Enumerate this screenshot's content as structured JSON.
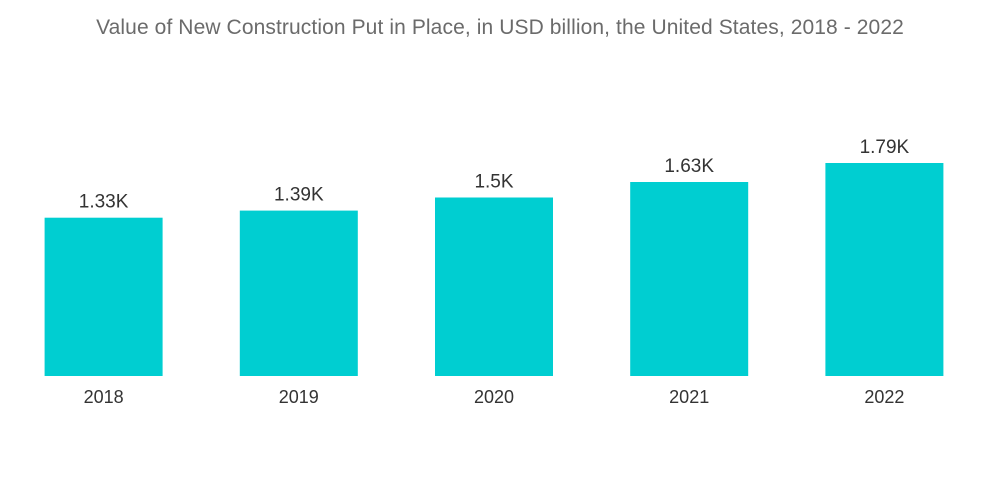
{
  "chart_data": {
    "type": "bar",
    "title": "Value of New Construction Put in Place, in USD billion, the United States, 2018 - 2022",
    "categories": [
      "2018",
      "2019",
      "2020",
      "2021",
      "2022"
    ],
    "values": [
      1330,
      1390,
      1500,
      1630,
      1790
    ],
    "data_labels": [
      "1.33K",
      "1.39K",
      "1.5K",
      "1.63K",
      "1.79K"
    ],
    "xlabel": "",
    "ylabel": "",
    "ylim": [
      0,
      1790
    ],
    "grid": false,
    "legend": "none",
    "colors": {
      "bar": "#00CED1",
      "title": "#6b6b6b",
      "text": "#333333"
    }
  }
}
